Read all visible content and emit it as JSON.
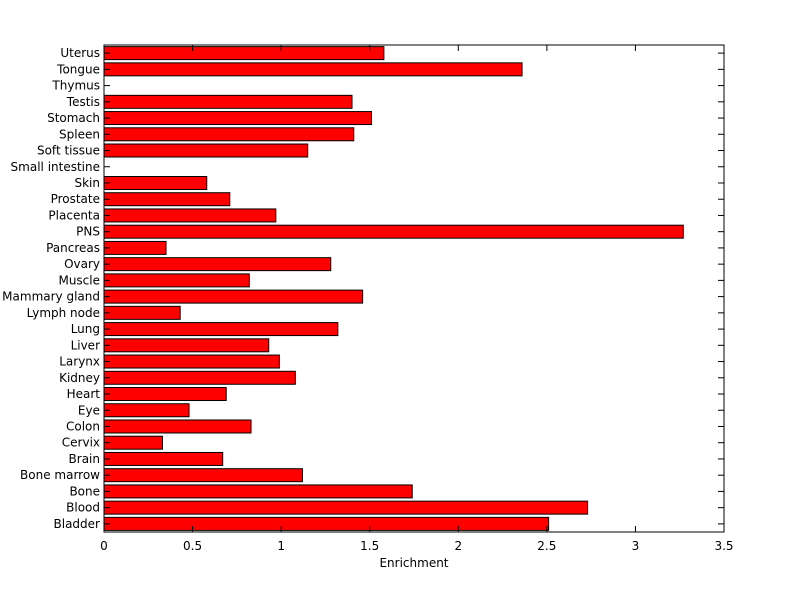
{
  "chart_data": {
    "type": "bar",
    "orientation": "horizontal",
    "categories": [
      "Bladder",
      "Blood",
      "Bone",
      "Bone marrow",
      "Brain",
      "Cervix",
      "Colon",
      "Eye",
      "Heart",
      "Kidney",
      "Larynx",
      "Liver",
      "Lung",
      "Lymph node",
      "Mammary gland",
      "Muscle",
      "Ovary",
      "Pancreas",
      "PNS",
      "Placenta",
      "Prostate",
      "Skin",
      "Small intestine",
      "Soft tissue",
      "Spleen",
      "Stomach",
      "Testis",
      "Thymus",
      "Tongue",
      "Uterus"
    ],
    "values": [
      2.51,
      2.73,
      1.74,
      1.12,
      0.67,
      0.33,
      0.83,
      0.48,
      0.69,
      1.08,
      0.99,
      0.93,
      1.32,
      0.43,
      1.46,
      0.82,
      1.28,
      0.35,
      3.27,
      0.97,
      0.71,
      0.58,
      0,
      1.15,
      1.41,
      1.51,
      1.4,
      0,
      2.36,
      1.58
    ],
    "xlabel": "Enrichment",
    "ylabel": "",
    "title": "",
    "xlim": [
      0,
      3.5
    ],
    "xticks": [
      0,
      0.5,
      1,
      1.5,
      2,
      2.5,
      3,
      3.5
    ],
    "xtick_labels": [
      "0",
      "0.5",
      "1",
      "1.5",
      "2",
      "2.5",
      "3",
      "3.5"
    ],
    "bar_color": "#ff0000",
    "edge_color": "#000000",
    "grid": false,
    "legend": "none"
  }
}
